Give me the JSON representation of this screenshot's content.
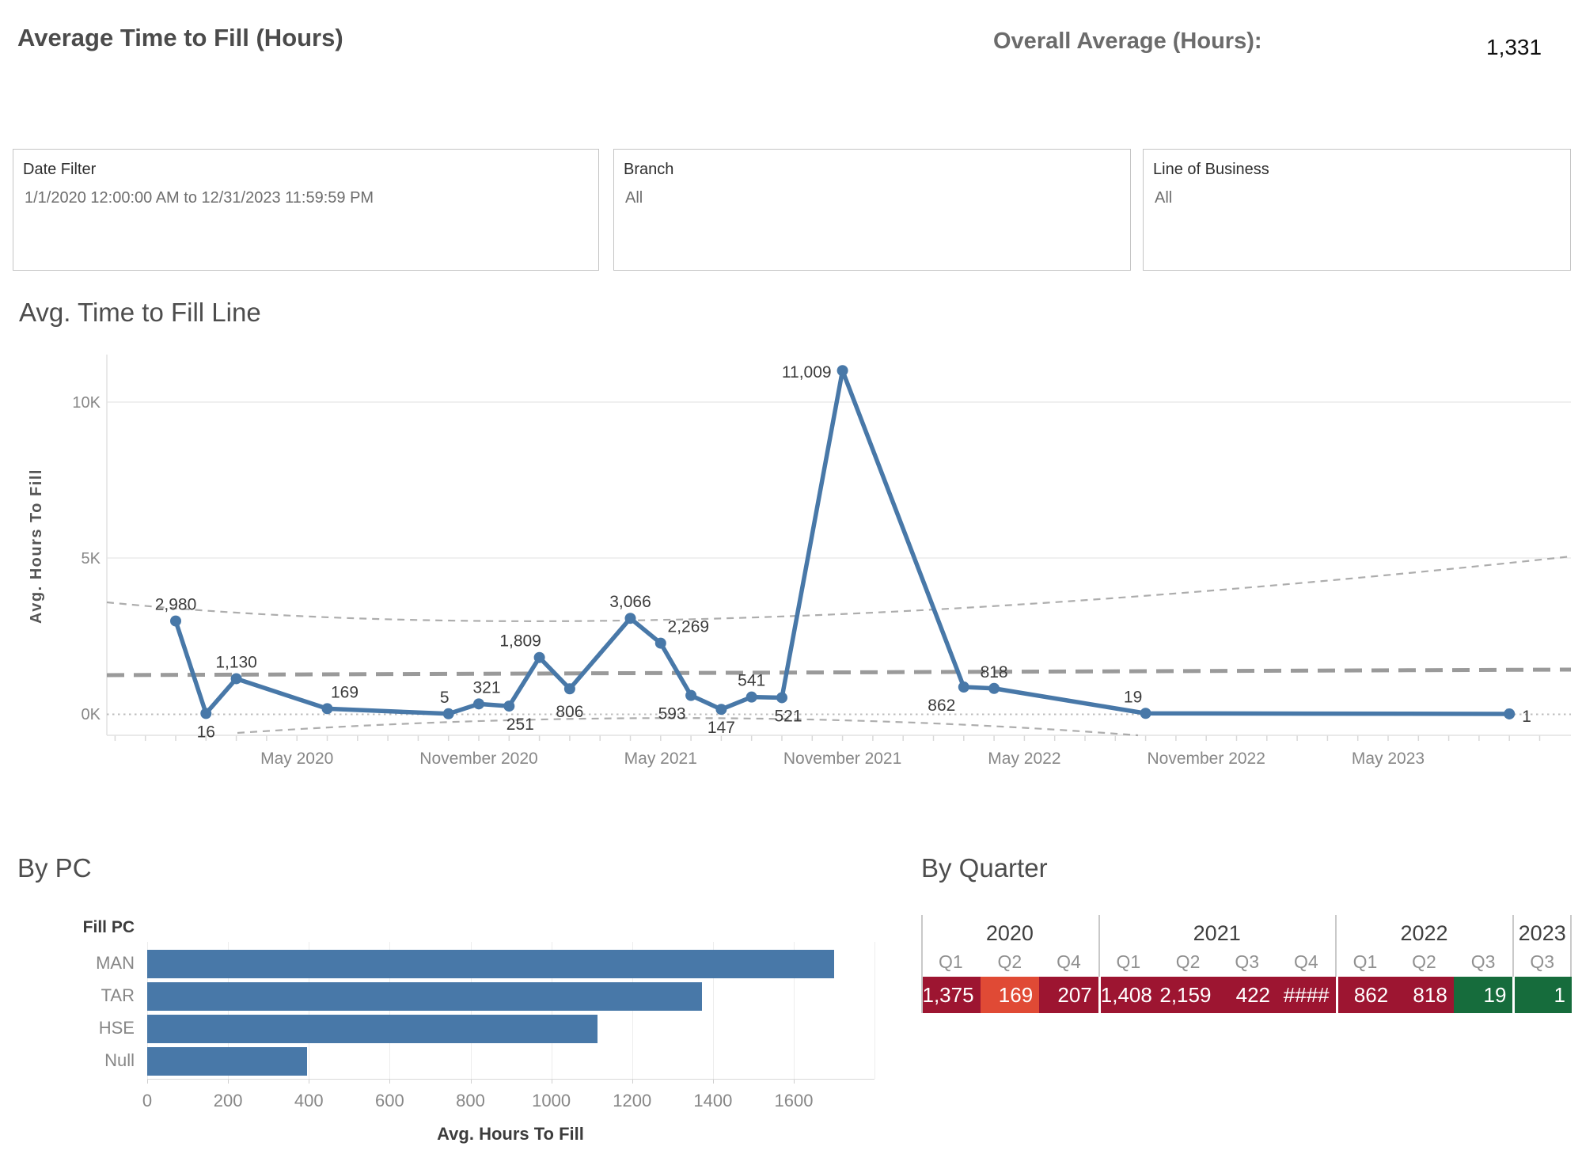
{
  "header": {
    "title": "Average Time to Fill (Hours)",
    "overall_label": "Overall Average (Hours):",
    "overall_value": "1,331"
  },
  "filters": [
    {
      "label": "Date Filter",
      "value": "1/1/2020 12:00:00 AM to 12/31/2023 11:59:59 PM"
    },
    {
      "label": "Branch",
      "value": "All"
    },
    {
      "label": "Line of Business",
      "value": "All"
    }
  ],
  "colors": {
    "line_blue": "#4878a8",
    "bar_blue": "#4878a8",
    "dark_red": "#9d1531",
    "orange_red": "#e04a35",
    "green": "#166c3c"
  },
  "chart_data": [
    {
      "type": "line",
      "title": "Avg. Time to Fill Line",
      "ylabel": "Avg. Hours To Fill",
      "ylim": [
        0,
        11500
      ],
      "grid": true,
      "y_ticks": [
        {
          "v": 0,
          "label": "0K"
        },
        {
          "v": 5000,
          "label": "5K"
        },
        {
          "v": 10000,
          "label": "10K"
        }
      ],
      "x_tick_labels": [
        {
          "m": 4,
          "label": "May 2020"
        },
        {
          "m": 10,
          "label": "November 2020"
        },
        {
          "m": 16,
          "label": "May 2021"
        },
        {
          "m": 22,
          "label": "November 2021"
        },
        {
          "m": 28,
          "label": "May 2022"
        },
        {
          "m": 34,
          "label": "November 2022"
        },
        {
          "m": 40,
          "label": "May 2023"
        }
      ],
      "reference_average": 1331,
      "points": [
        {
          "date": "2020-01",
          "m": 0,
          "value": 2980,
          "label": "2,980",
          "pos": "above"
        },
        {
          "date": "2020-02",
          "m": 1,
          "value": 16,
          "label": "16",
          "pos": "below"
        },
        {
          "date": "2020-03",
          "m": 2,
          "value": 1130,
          "label": "1,130",
          "pos": "above"
        },
        {
          "date": "2020-06",
          "m": 5,
          "value": 169,
          "label": "169",
          "pos": "above",
          "dx": 22
        },
        {
          "date": "2020-10",
          "m": 9,
          "value": 5,
          "label": "5",
          "pos": "above",
          "dx": -5
        },
        {
          "date": "2020-11",
          "m": 10,
          "value": 321,
          "label": "321",
          "pos": "above",
          "dx": 10
        },
        {
          "date": "2020-12",
          "m": 11,
          "value": 251,
          "label": "251",
          "pos": "below",
          "dx": 14
        },
        {
          "date": "2021-01",
          "m": 12,
          "value": 1809,
          "label": "1,809",
          "pos": "above",
          "dx": -24
        },
        {
          "date": "2021-02",
          "m": 13,
          "value": 806,
          "label": "806",
          "pos": "below",
          "dy": 6
        },
        {
          "date": "2021-04",
          "m": 15,
          "value": 3066,
          "label": "3,066",
          "pos": "above"
        },
        {
          "date": "2021-05",
          "m": 16,
          "value": 2269,
          "label": "2,269",
          "pos": "above",
          "dx": 35
        },
        {
          "date": "2021-06",
          "m": 17,
          "value": 593,
          "label": "593",
          "pos": "below",
          "dx": -24
        },
        {
          "date": "2021-07",
          "m": 18,
          "value": 147,
          "label": "147",
          "pos": "below"
        },
        {
          "date": "2021-08",
          "m": 19,
          "value": 541,
          "label": "541",
          "pos": "above"
        },
        {
          "date": "2021-09",
          "m": 20,
          "value": 521,
          "label": "521",
          "pos": "below",
          "dx": 8
        },
        {
          "date": "2021-11",
          "m": 22,
          "value": 11009,
          "label": "11,009",
          "pos": "left"
        },
        {
          "date": "2022-03",
          "m": 26,
          "value": 862,
          "label": "862",
          "pos": "below",
          "dx": -28
        },
        {
          "date": "2022-04",
          "m": 27,
          "value": 818,
          "label": "818",
          "pos": "above"
        },
        {
          "date": "2022-09",
          "m": 32,
          "value": 19,
          "label": "19",
          "pos": "above",
          "dx": -16
        },
        {
          "date": "2023-09",
          "m": 44,
          "value": 1,
          "label": "1",
          "pos": "right"
        }
      ]
    },
    {
      "type": "bar",
      "title": "By PC",
      "ylabel_header": "Fill PC",
      "xlabel": "Avg. Hours To Fill",
      "categories": [
        "MAN",
        "TAR",
        "HSE",
        "Null"
      ],
      "values": [
        1700,
        1372,
        1114,
        395
      ],
      "x_ticks": [
        0,
        200,
        400,
        600,
        800,
        1000,
        1200,
        1400,
        1600
      ],
      "xlim": [
        0,
        1800
      ]
    },
    {
      "type": "table",
      "title": "By Quarter",
      "years": [
        {
          "label": "2020",
          "cols": [
            {
              "q": "Q1",
              "value": "1,375",
              "color": "dark_red"
            },
            {
              "q": "Q2",
              "value": "169",
              "color": "orange_red"
            },
            {
              "q": "Q4",
              "value": "207",
              "color": "dark_red"
            }
          ]
        },
        {
          "label": "2021",
          "cols": [
            {
              "q": "Q1",
              "value": "1,408",
              "color": "dark_red"
            },
            {
              "q": "Q2",
              "value": "2,159",
              "color": "dark_red"
            },
            {
              "q": "Q3",
              "value": "422",
              "color": "dark_red"
            },
            {
              "q": "Q4",
              "value": "####",
              "color": "dark_red"
            }
          ]
        },
        {
          "label": "2022",
          "cols": [
            {
              "q": "Q1",
              "value": "862",
              "color": "dark_red"
            },
            {
              "q": "Q2",
              "value": "818",
              "color": "dark_red"
            },
            {
              "q": "Q3",
              "value": "19",
              "color": "green"
            }
          ]
        },
        {
          "label": "2023",
          "cols": [
            {
              "q": "Q3",
              "value": "1",
              "color": "green"
            }
          ]
        }
      ]
    }
  ]
}
